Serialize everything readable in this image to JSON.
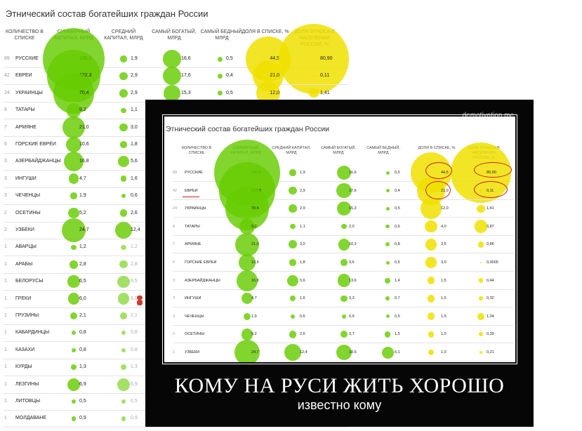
{
  "left_table": {
    "title": "Этнический состав богатейших граждан России",
    "headers": [
      "КОЛИЧЕСТВО В СПИСКЕ",
      "СУММАРНЫЙ КАПИТАЛ, МЛРД",
      "СРЕДНИЙ КАПИТАЛ, МЛРД",
      "САМЫЙ БОГАТЫЙ, МЛРД",
      "САМЫЙ БЕДНЫЙ, МЛРД",
      "ДОЛЯ В СПИСКЕ, %",
      "ДОЛЯ ЭТНОСА В НАСЕЛЕНИИ РОССИИ, %"
    ],
    "rows": [
      {
        "count": "89",
        "name": "РУССКИЕ",
        "total": "165,0",
        "avg": "1,9",
        "richest": "16,6",
        "poorest": "0,5",
        "share": "44,5",
        "pop": "80,90"
      },
      {
        "count": "42",
        "name": "ЕВРЕИ",
        "total": "122,3",
        "avg": "2,9",
        "richest": "17,6",
        "poorest": "0,4",
        "share": "21,0",
        "pop": "0,11"
      },
      {
        "count": "24",
        "name": "УКРАИНЦЫ",
        "total": "70,4",
        "avg": "2,9",
        "richest": "15,3",
        "poorest": "0,5",
        "share": "12,0",
        "pop": "1,41"
      },
      {
        "count": "8",
        "name": "ТАТАРЫ",
        "total": "9,2",
        "avg": "1,1"
      },
      {
        "count": "7",
        "name": "АРМЯНЕ",
        "total": "21,0",
        "avg": "3,0"
      },
      {
        "count": "6",
        "name": "ГОРСКИЕ ЕВРЕИ",
        "total": "10,6",
        "avg": "1,8"
      },
      {
        "count": "3",
        "name": "АЗЕРБАЙДЖАНЦЫ",
        "total": "16,8",
        "avg": "5,6"
      },
      {
        "count": "3",
        "name": "ИНГУШИ",
        "total": "4,7",
        "avg": "1,6"
      },
      {
        "count": "3",
        "name": "ЧЕЧЕНЦЫ",
        "total": "1,9",
        "avg": "0,6"
      },
      {
        "count": "2",
        "name": "ОСЕТИНЫ",
        "total": "5,2",
        "avg": "2,6"
      },
      {
        "count": "2",
        "name": "УЗБЕКИ",
        "total": "24,7",
        "avg": "12,4"
      },
      {
        "count": "1",
        "name": "АВАРЦЫ",
        "total": "1,2",
        "avg": "1,2"
      },
      {
        "count": "1",
        "name": "АРАБЫ",
        "total": "2,8",
        "avg": "2,8"
      },
      {
        "count": "1",
        "name": "БЕЛОРУСЫ",
        "total": "6,5",
        "avg": "6,5"
      },
      {
        "count": "1",
        "name": "ГРЕКИ",
        "total": "6,0",
        "avg": "6,0"
      },
      {
        "count": "1",
        "name": "ГРУЗИНЫ",
        "total": "2,1",
        "avg": "2,1"
      },
      {
        "count": "1",
        "name": "КАБАРДИНЦЫ",
        "total": "0,8",
        "avg": "0,8"
      },
      {
        "count": "1",
        "name": "КАЗАХИ",
        "total": "0,8",
        "avg": "0,8"
      },
      {
        "count": "1",
        "name": "КУРДЫ",
        "total": "1,3",
        "avg": "1,3"
      },
      {
        "count": "1",
        "name": "ЛЕЗГИНЫ",
        "total": "6,9",
        "avg": "6,9"
      },
      {
        "count": "1",
        "name": "ЛИТОВЦЫ",
        "total": "0,5",
        "avg": "0,5"
      },
      {
        "count": "1",
        "name": "МОЛДАВАНЕ",
        "total": "0,9",
        "avg": "0,9"
      }
    ]
  },
  "poster": {
    "watermark": "demotivation.me",
    "caption_main": "КОМУ НА РУСИ ЖИТЬ ХОРОШО",
    "caption_sub": "известно кому",
    "colors": {
      "frame": "#060606",
      "bubble_green": "#66cc00",
      "bubble_yellow": "#f0e100",
      "marker_red": "#cf2020"
    },
    "table": {
      "title": "Этнический состав богатейших граждан России",
      "headers": [
        "КОЛИЧЕСТВО В СПИСКЕ",
        "СУММАРНЫЙ КАПИТАЛ, МЛРД",
        "СРЕДНИЙ КАПИТАЛ, МЛРД",
        "САМЫЙ БОГАТЫЙ, МЛРД",
        "САМЫЙ БЕДНЫЙ, МЛРД",
        "ДОЛЯ В СПИСКЕ, %",
        "ДОЛЯ ЭТНОСА В НАСЕЛЕНИИ РОССИИ, %"
      ],
      "rows": [
        {
          "count": "89",
          "name": "РУССКИЕ",
          "total": "165,0",
          "avg": "1,9",
          "richest": "16,6",
          "poorest": "0,5",
          "share": "44,5",
          "pop": "80,90"
        },
        {
          "count": "42",
          "name": "ЕВРЕИ",
          "total": "122,3",
          "avg": "2,9",
          "richest": "17,6",
          "poorest": "0,4",
          "share": "21,0",
          "pop": "0,11"
        },
        {
          "count": "24",
          "name": "УКРАИНЦЫ",
          "total": "70,4",
          "avg": "2,9",
          "richest": "15,3",
          "poorest": "0,5",
          "share": "12,0",
          "pop": "1,41"
        },
        {
          "count": "8",
          "name": "ТАТАРЫ",
          "total": "9,2",
          "avg": "1,1",
          "richest": "2,0",
          "poorest": "0,6",
          "share": "4,0",
          "pop": "3,87"
        },
        {
          "count": "7",
          "name": "АРМЯНЕ",
          "total": "21,0",
          "avg": "3,0",
          "richest": "10,3",
          "poorest": "0,8",
          "share": "3,5",
          "pop": "0,86"
        },
        {
          "count": "6",
          "name": "ГОРСКИЕ ЕВРЕИ",
          "total": "10,6",
          "avg": "1,8",
          "richest": "3,6",
          "poorest": "0,5",
          "share": "3,0",
          "pop": "0,0005"
        },
        {
          "count": "3",
          "name": "АЗЕРБАЙДЖАНЦЫ",
          "total": "16,8",
          "avg": "5,6",
          "richest": "13,6",
          "poorest": "1,4",
          "share": "1,5",
          "pop": "0,44"
        },
        {
          "count": "3",
          "name": "ИНГУШИ",
          "total": "4,7",
          "avg": "1,6",
          "richest": "3,3",
          "poorest": "0,7",
          "share": "1,5",
          "pop": "0,32"
        },
        {
          "count": "3",
          "name": "ЧЕЧЕНЦЫ",
          "total": "1,9",
          "avg": "0,6",
          "richest": "0,9",
          "poorest": "0,5",
          "share": "1,5",
          "pop": "1,04"
        },
        {
          "count": "2",
          "name": "ОСЕТИНЫ",
          "total": "5,2",
          "avg": "2,6",
          "richest": "3,7",
          "poorest": "1,5",
          "share": "1,0",
          "pop": "0,39"
        },
        {
          "count": "2",
          "name": "УЗБЕКИ",
          "total": "24,7",
          "avg": "12,4",
          "richest": "18,6",
          "poorest": "6,1",
          "share": "1,0",
          "pop": "0,21"
        }
      ]
    }
  }
}
